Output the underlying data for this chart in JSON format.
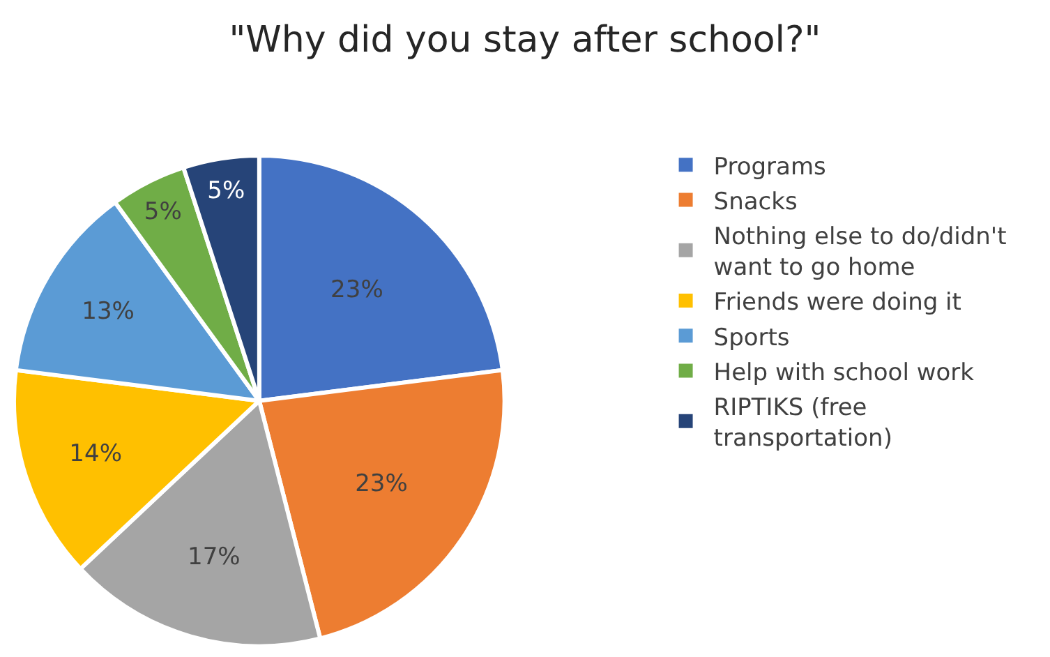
{
  "chart_data": {
    "type": "pie",
    "title": "\"Why did you stay after school?\"",
    "categories": [
      "Programs",
      "Snacks",
      "Nothing else to do/didn't want to go home",
      "Friends were doing it",
      "Sports",
      "Help with school work",
      "RIPTIKS (free transportation)"
    ],
    "values": [
      23,
      23,
      17,
      14,
      13,
      5,
      5
    ],
    "colors": [
      "#4472c4",
      "#ed7d31",
      "#a5a5a5",
      "#ffc000",
      "#5b9bd5",
      "#70ad47",
      "#264478"
    ],
    "value_labels": [
      "23%",
      "23%",
      "17%",
      "14%",
      "13%",
      "5%",
      "5%"
    ],
    "legend": "right"
  }
}
